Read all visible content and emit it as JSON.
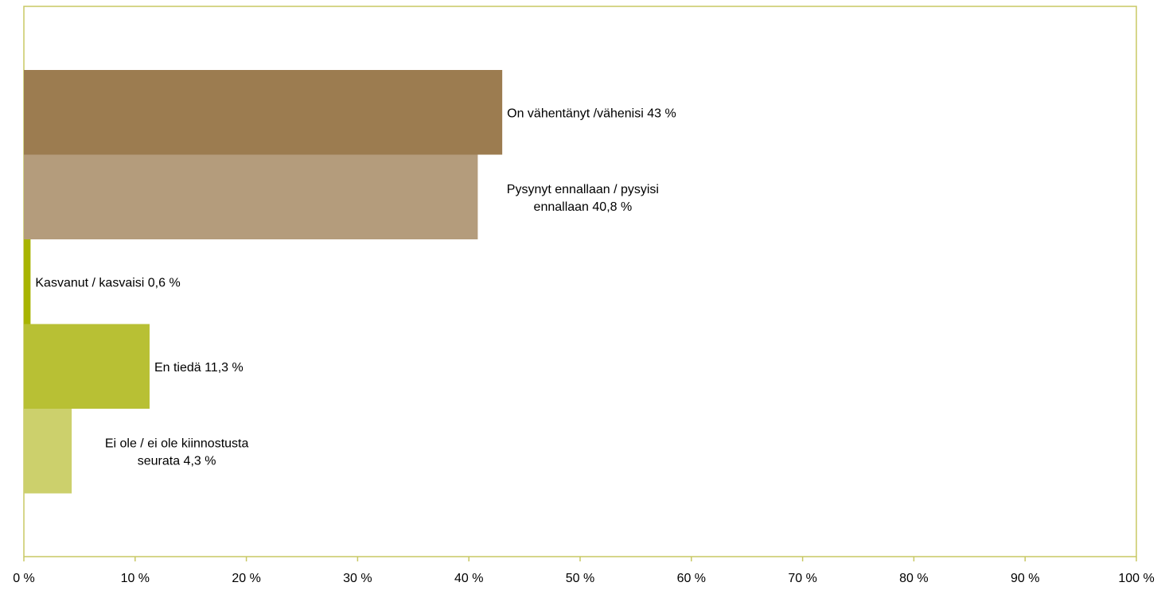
{
  "chart_data": {
    "type": "bar",
    "orientation": "horizontal",
    "title": "",
    "xlabel": "",
    "ylabel": "",
    "xlim": [
      0,
      100
    ],
    "x_ticks": [
      0,
      10,
      20,
      30,
      40,
      50,
      60,
      70,
      80,
      90,
      100
    ],
    "x_tick_labels": [
      "0 %",
      "10 %",
      "20 %",
      "30 %",
      "40 %",
      "50 %",
      "60 %",
      "70 %",
      "80 %",
      "90 %",
      "100 %"
    ],
    "grid": false,
    "legend": "none",
    "frame_color": "#C8C864",
    "bars": [
      {
        "category": "On vähentänyt /vähenisi",
        "value": 43.0,
        "label_lines": [
          "On vähentänyt /vähenisi 43 %"
        ],
        "color": "#9C7C50"
      },
      {
        "category": "Pysynyt ennallaan / pysyisi ennallaan",
        "value": 40.8,
        "label_lines": [
          "Pysynyt ennallaan / pysyisi",
          "ennallaan 40,8 %"
        ],
        "color": "#B49C7C"
      },
      {
        "category": "Kasvanut / kasvaisi",
        "value": 0.6,
        "label_lines": [
          "Kasvanut / kasvaisi 0,6 %"
        ],
        "color": "#A8B400"
      },
      {
        "category": "En tiedä",
        "value": 11.3,
        "label_lines": [
          "En tiedä 11,3 %"
        ],
        "color": "#B8C034"
      },
      {
        "category": "Ei ole / ei ole kiinnostusta seurata",
        "value": 4.3,
        "label_lines": [
          "Ei ole / ei ole kiinnostusta",
          "seurata 4,3 %"
        ],
        "color": "#CCD06C"
      }
    ]
  }
}
